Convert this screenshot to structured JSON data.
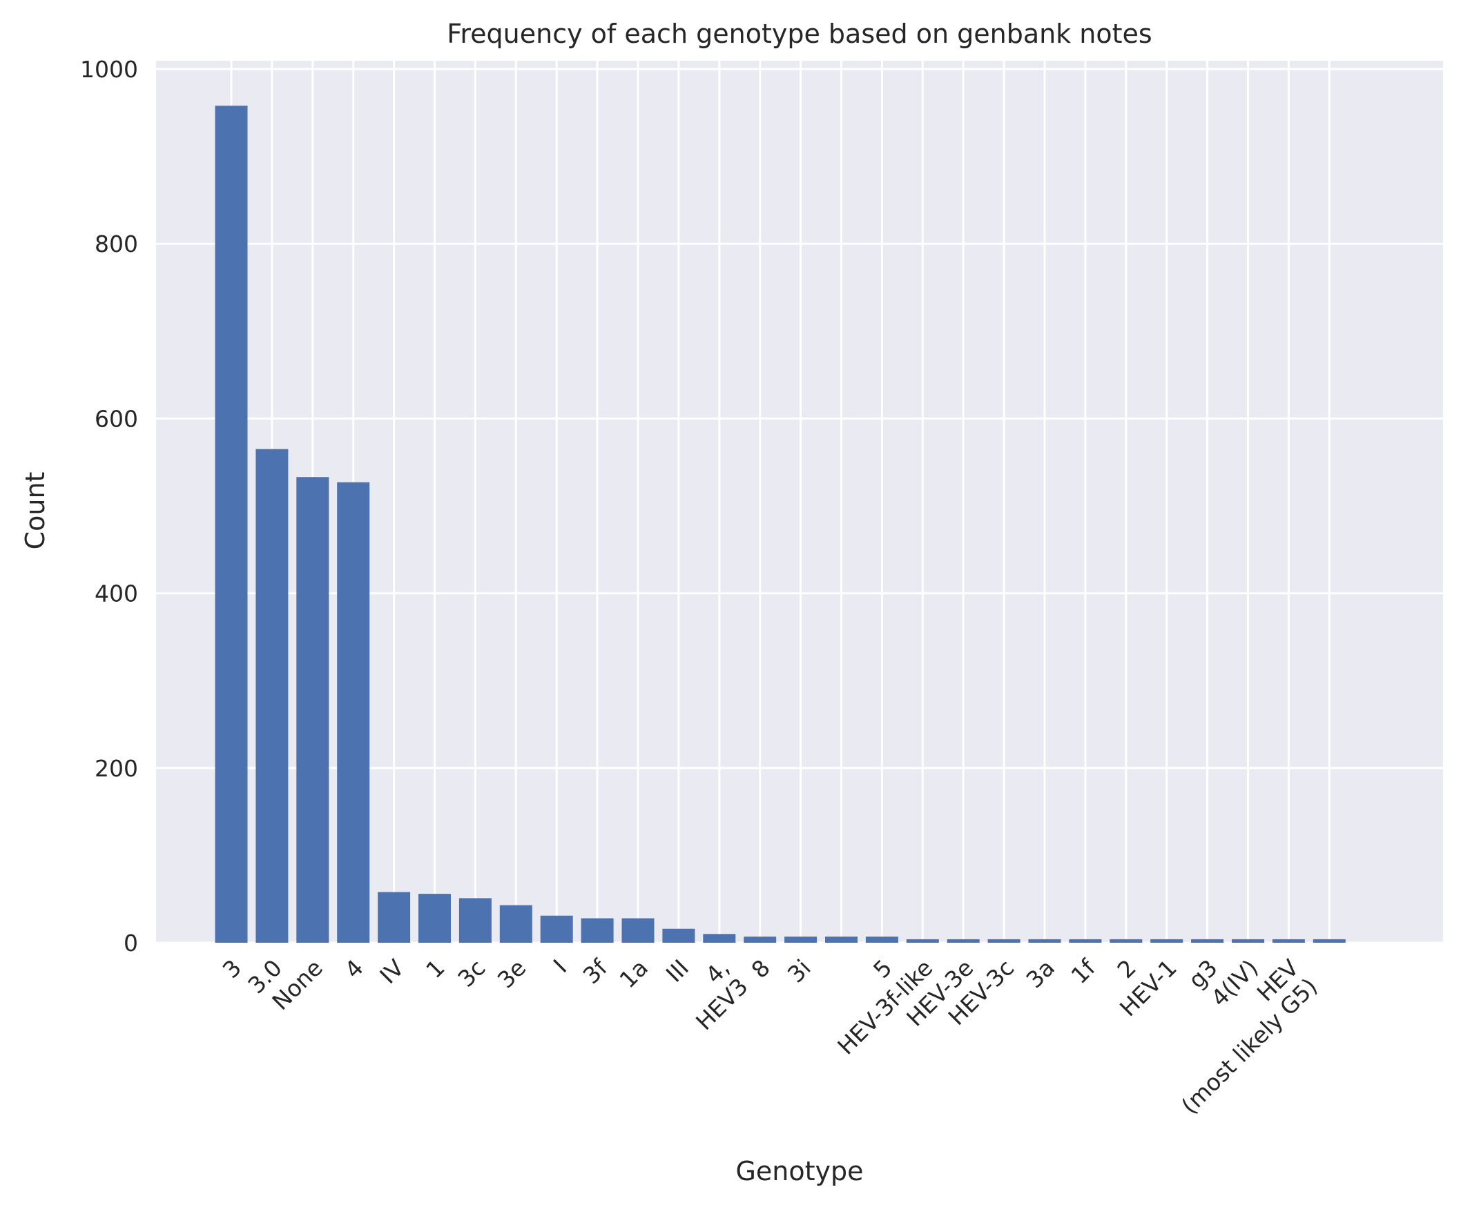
{
  "chart_data": {
    "type": "bar",
    "title": "Frequency of each genotype based on genbank notes",
    "xlabel": "Genotype",
    "ylabel": "Count",
    "ylim": [
      0,
      1000
    ],
    "yticks": [
      0,
      200,
      400,
      600,
      800,
      1000
    ],
    "grid": true,
    "bar_color": "#4c72b0",
    "background_color": "#eaeaf2",
    "categories": [
      "3",
      "3.0",
      "None",
      "4",
      "IV",
      "1",
      "3c",
      "3e",
      "I",
      "3f",
      "1a",
      "III",
      "4,\nHEV3",
      "8",
      "3i",
      "",
      "5",
      "HEV-3f-like",
      "HEV-3e",
      "HEV-3c",
      "3a",
      "1f",
      "2",
      "HEV-1",
      "g3",
      "4(IV)",
      "HEV\n(most likely G5)",
      ""
    ],
    "values": [
      958,
      565,
      533,
      527,
      58,
      56,
      51,
      43,
      31,
      28,
      28,
      16,
      10,
      7,
      7,
      7,
      7,
      4,
      4,
      4,
      4,
      4,
      4,
      4,
      4,
      4,
      4,
      4
    ]
  }
}
